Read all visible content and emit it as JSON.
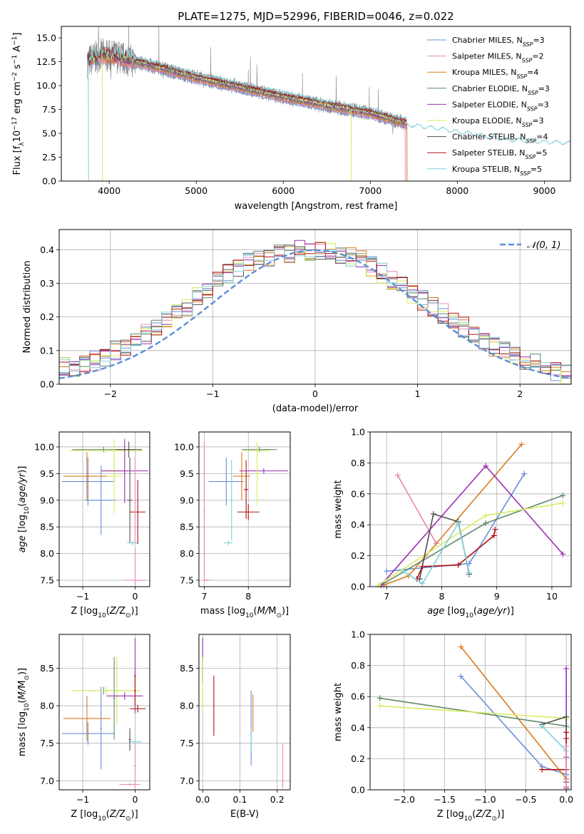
{
  "figure_title": "PLATE=1275, MJD=52996, FIBERID=0046, z=0.022",
  "colors": {
    "Chabrier MILES": "#6a8fd8",
    "Salpeter MILES": "#e888b8",
    "Kroupa MILES": "#d97b20",
    "Chabrier ELODIE": "#5f8a68",
    "Salpeter ELODIE": "#9a30b0",
    "Kroupa ELODIE": "#d8ec60",
    "Chabrier STELIB": "#505050",
    "Salpeter STELIB": "#b01010",
    "Kroupa STELIB": "#80d0d8",
    "data": "#808080",
    "normal": "#5b8ed6"
  },
  "chart_data": [
    {
      "type": "line",
      "panel": "spectrum",
      "title": "PLATE=1275, MJD=52996, FIBERID=0046, z=0.022",
      "xlabel": "wavelength [Angstrom, rest frame]",
      "ylabel": "Flux [f_λ 10^-17 erg cm^-2 s^-1 A^-1]",
      "xlim": [
        3450,
        9300
      ],
      "ylim": [
        0,
        16.2
      ],
      "xticks": [
        "4000",
        "5000",
        "6000",
        "7000",
        "8000",
        "9000"
      ],
      "yticks": [
        "0.0",
        "2.5",
        "5.0",
        "7.5",
        "10.0",
        "12.5",
        "15.0"
      ],
      "legend_position": "upper right",
      "legend": [
        {
          "name": "Chabrier MILES",
          "nssp": "3"
        },
        {
          "name": "Salpeter MILES",
          "nssp": "2"
        },
        {
          "name": "Kroupa MILES",
          "nssp": "4"
        },
        {
          "name": "Chabrier ELODIE",
          "nssp": "3"
        },
        {
          "name": "Salpeter ELODIE",
          "nssp": "3"
        },
        {
          "name": "Kroupa ELODIE",
          "nssp": "3"
        },
        {
          "name": "Chabrier STELIB",
          "nssp": "4"
        },
        {
          "name": "Salpeter STELIB",
          "nssp": "5"
        },
        {
          "name": "Kroupa STELIB",
          "nssp": "5"
        }
      ],
      "continuum_wavelength": [
        3750,
        3900,
        4100,
        4300,
        4600,
        5000,
        5500,
        6000,
        6500,
        7000,
        7420
      ],
      "continuum_flux": [
        12.5,
        13.2,
        13.0,
        12.5,
        11.8,
        10.8,
        9.8,
        8.8,
        7.9,
        7.1,
        6.0
      ]
    },
    {
      "type": "line",
      "panel": "residual-distribution",
      "xlabel": "(data-model)/error",
      "ylabel": "Normed distribution",
      "xlim": [
        -2.5,
        2.5
      ],
      "ylim": [
        0,
        0.46
      ],
      "xticks": [
        "−2",
        "−1",
        "0",
        "1",
        "2"
      ],
      "yticks": [
        "0.0",
        "0.1",
        "0.2",
        "0.3",
        "0.4"
      ],
      "grid": true,
      "legend_position": "upper right",
      "legend": [
        "𝒩(0, 1)"
      ],
      "bin_width": 0.1,
      "bin_centers": [
        -2.45,
        -2.35,
        -2.25,
        -2.15,
        -2.05,
        -1.95,
        -1.85,
        -1.75,
        -1.65,
        -1.55,
        -1.45,
        -1.35,
        -1.25,
        -1.15,
        -1.05,
        -0.95,
        -0.85,
        -0.75,
        -0.65,
        -0.55,
        -0.45,
        -0.35,
        -0.25,
        -0.15,
        -0.05,
        0.05,
        0.15,
        0.25,
        0.35,
        0.45,
        0.55,
        0.65,
        0.75,
        0.85,
        0.95,
        1.05,
        1.15,
        1.25,
        1.35,
        1.45,
        1.55,
        1.65,
        1.75,
        1.85,
        1.95,
        2.05,
        2.15,
        2.25,
        2.35,
        2.45
      ],
      "histogram_base": [
        0.05,
        0.05,
        0.06,
        0.07,
        0.08,
        0.1,
        0.11,
        0.13,
        0.15,
        0.17,
        0.19,
        0.21,
        0.23,
        0.26,
        0.28,
        0.31,
        0.33,
        0.35,
        0.36,
        0.37,
        0.38,
        0.4,
        0.39,
        0.4,
        0.39,
        0.4,
        0.39,
        0.38,
        0.38,
        0.37,
        0.35,
        0.33,
        0.31,
        0.29,
        0.27,
        0.25,
        0.23,
        0.21,
        0.19,
        0.17,
        0.15,
        0.13,
        0.11,
        0.1,
        0.08,
        0.07,
        0.06,
        0.05,
        0.04,
        0.03
      ]
    },
    {
      "type": "scatter",
      "panel": "age-vs-Z",
      "xlabel": "Z [log10(Z/Z⊙)]",
      "ylabel": "age  [log10(age/yr)]",
      "xlim": [
        -1.45,
        0.28
      ],
      "ylim": [
        7.38,
        10.28
      ],
      "xticks": [
        "−1",
        "0"
      ],
      "yticks": [
        "7.5",
        "8.0",
        "8.5",
        "9.0",
        "9.5",
        "10.0"
      ],
      "grid": true,
      "points": [
        {
          "series": "Chabrier MILES",
          "x": -0.9,
          "xerr": 0.5,
          "y": 9.35,
          "yerr": 0.45
        },
        {
          "series": "Chabrier MILES",
          "x": -0.65,
          "xerr": 0.3,
          "y": 9.0,
          "yerr": 0.65
        },
        {
          "series": "Kroupa MILES",
          "x": -0.92,
          "xerr": 0.45,
          "y": 9.45,
          "yerr": 0.45
        },
        {
          "series": "Kroupa MILES",
          "x": -0.4,
          "xerr": 0.25,
          "y": 9.55,
          "yerr": 0.2
        },
        {
          "series": "Chabrier ELODIE",
          "x": -0.6,
          "xerr": 0.6,
          "y": 9.95,
          "yerr": 0.05
        },
        {
          "series": "Kroupa ELODIE",
          "x": -0.55,
          "xerr": 0.7,
          "y": 9.93,
          "yerr": 0.05
        },
        {
          "series": "Kroupa ELODIE",
          "x": -0.4,
          "xerr": 0.15,
          "y": 9.45,
          "yerr": 0.7
        },
        {
          "series": "Salpeter ELODIE",
          "x": -0.2,
          "xerr": 0.45,
          "y": 9.55,
          "yerr": 0.6
        },
        {
          "series": "Chabrier STELIB",
          "x": -0.12,
          "xerr": 0.25,
          "y": 9.95,
          "yerr": 0.15
        },
        {
          "series": "Chabrier STELIB",
          "x": -0.1,
          "xerr": 0.05,
          "y": 9.0,
          "yerr": 0.8
        },
        {
          "series": "Kroupa STELIB",
          "x": -0.05,
          "xerr": 0.1,
          "y": 8.2,
          "yerr": 0.05
        },
        {
          "series": "Salpeter STELIB",
          "x": 0.05,
          "xerr": 0.15,
          "y": 8.78,
          "yerr": 0.6
        },
        {
          "series": "Salpeter MILES",
          "x": 0.0,
          "xerr": 0.2,
          "y": 7.5,
          "yerr": 0.6
        },
        {
          "series": "Salpeter MILES",
          "x": 0.0,
          "xerr": 0.02,
          "y": 9.0,
          "yerr": 0.8
        }
      ]
    },
    {
      "type": "scatter",
      "panel": "age-vs-mass",
      "xlabel": "mass [log10(M/M⊙)]",
      "ylabel": "",
      "xlim": [
        6.88,
        8.95
      ],
      "ylim": [
        7.38,
        10.28
      ],
      "xticks": [
        "7",
        "8"
      ],
      "yticks": [
        "7.5",
        "8.0",
        "8.5",
        "9.0",
        "9.5",
        "10.0"
      ],
      "grid": true,
      "points": [
        {
          "series": "Chabrier MILES",
          "x": 7.5,
          "xerr": 0.4,
          "y": 9.35,
          "yerr": 0.45
        },
        {
          "series": "Kroupa STELIB",
          "x": 7.55,
          "xerr": 0.1,
          "y": 8.2,
          "yerr": 0.05
        },
        {
          "series": "Kroupa STELIB",
          "x": 7.62,
          "xerr": 0.02,
          "y": 9.0,
          "yerr": 0.75
        },
        {
          "series": "Kroupa MILES",
          "x": 7.85,
          "xerr": 0.2,
          "y": 9.45,
          "yerr": 0.45
        },
        {
          "series": "Salpeter STELIB",
          "x": 8.0,
          "xerr": 0.25,
          "y": 8.78,
          "yerr": 0.15
        },
        {
          "series": "Salpeter STELIB",
          "x": 7.95,
          "xerr": 0.05,
          "y": 9.2,
          "yerr": 0.55
        },
        {
          "series": "Salpeter ELODIE",
          "x": 8.35,
          "xerr": 0.55,
          "y": 9.55,
          "yerr": 0.05
        },
        {
          "series": "Chabrier ELODIE",
          "x": 8.25,
          "xerr": 0.4,
          "y": 9.95,
          "yerr": 0.05
        },
        {
          "series": "Kroupa ELODIE",
          "x": 8.2,
          "xerr": 0.3,
          "y": 9.93,
          "yerr": 0.05
        },
        {
          "series": "Kroupa ELODIE",
          "x": 8.2,
          "xerr": 0.05,
          "y": 9.5,
          "yerr": 0.6
        },
        {
          "series": "Salpeter MILES",
          "x": 7.05,
          "xerr": 0.1,
          "y": 7.5,
          "yerr": 0.02
        },
        {
          "series": "Salpeter MILES",
          "x": 7.0,
          "xerr": 0.02,
          "y": 8.8,
          "yerr": 1.3
        }
      ]
    },
    {
      "type": "line",
      "panel": "mass-weight-vs-age",
      "xlabel": "age  [log10(age/yr)]",
      "ylabel": "mass weight",
      "xlim": [
        6.7,
        10.35
      ],
      "ylim": [
        0,
        1
      ],
      "xticks": [
        "7",
        "8",
        "9",
        "10"
      ],
      "yticks": [
        "0.0",
        "0.2",
        "0.4",
        "0.6",
        "0.8",
        "1.0"
      ],
      "grid": true,
      "series": [
        {
          "name": "Chabrier MILES",
          "x": [
            7.0,
            8.5,
            9.5
          ],
          "y": [
            0.1,
            0.15,
            0.73
          ]
        },
        {
          "name": "Salpeter MILES",
          "x": [
            7.2,
            7.9
          ],
          "y": [
            0.72,
            0.28
          ]
        },
        {
          "name": "Kroupa MILES",
          "x": [
            6.95,
            7.4,
            9.45
          ],
          "y": [
            0.01,
            0.07,
            0.92
          ]
        },
        {
          "name": "Chabrier ELODIE",
          "x": [
            6.9,
            8.8,
            10.2
          ],
          "y": [
            0.01,
            0.41,
            0.59
          ]
        },
        {
          "name": "Salpeter ELODIE",
          "x": [
            6.9,
            8.8,
            10.2
          ],
          "y": [
            0.01,
            0.78,
            0.21
          ]
        },
        {
          "name": "Kroupa ELODIE",
          "x": [
            6.85,
            8.8,
            10.2
          ],
          "y": [
            0.01,
            0.46,
            0.54
          ]
        },
        {
          "name": "Chabrier STELIB",
          "x": [
            7.6,
            7.85,
            8.3,
            8.5
          ],
          "y": [
            0.05,
            0.47,
            0.42,
            0.08
          ]
        },
        {
          "name": "Salpeter STELIB",
          "x": [
            7.55,
            7.65,
            8.3,
            8.95,
            8.97
          ],
          "y": [
            0.05,
            0.13,
            0.14,
            0.33,
            0.37
          ]
        },
        {
          "name": "Kroupa STELIB",
          "x": [
            7.3,
            7.65,
            8.3,
            8.5
          ],
          "y": [
            0.1,
            0.02,
            0.41,
            0.09
          ]
        }
      ]
    },
    {
      "type": "scatter",
      "panel": "mass-vs-Z",
      "xlabel": "Z [log10(Z/Z⊙)]",
      "ylabel": "mass [log10(M/M⊙)]",
      "xlim": [
        -1.45,
        0.28
      ],
      "ylim": [
        6.88,
        8.95
      ],
      "xticks": [
        "−1",
        "0"
      ],
      "yticks": [
        "7.0",
        "7.5",
        "8.0",
        "8.5"
      ],
      "grid": true,
      "points": [
        {
          "series": "Chabrier MILES",
          "x": -0.9,
          "xerr": 0.5,
          "y": 7.63,
          "yerr": 0.15
        },
        {
          "series": "Chabrier MILES",
          "x": -0.65,
          "xerr": 0.02,
          "y": 7.7,
          "yerr": 0.55
        },
        {
          "series": "Kroupa MILES",
          "x": -0.92,
          "xerr": 0.45,
          "y": 7.83,
          "yerr": 0.3
        },
        {
          "series": "Chabrier ELODIE",
          "x": -0.6,
          "xerr": 0.55,
          "y": 8.2,
          "yerr": 0.05
        },
        {
          "series": "Kroupa ELODIE",
          "x": -0.55,
          "xerr": 0.65,
          "y": 8.2,
          "yerr": 0.05
        },
        {
          "series": "Kroupa ELODIE",
          "x": -0.35,
          "xerr": 0.02,
          "y": 8.2,
          "yerr": 0.45
        },
        {
          "series": "Chabrier ELODIE",
          "x": -0.4,
          "xerr": 0.02,
          "y": 8.1,
          "yerr": 0.55
        },
        {
          "series": "Salpeter ELODIE",
          "x": -0.2,
          "xerr": 0.35,
          "y": 8.13,
          "yerr": 0.05
        },
        {
          "series": "Salpeter ELODIE",
          "x": 0.0,
          "xerr": 0.02,
          "y": 8.4,
          "yerr": 0.5
        },
        {
          "series": "Kroupa STELIB",
          "x": 0.0,
          "xerr": 0.12,
          "y": 7.52,
          "yerr": 0.02
        },
        {
          "series": "Chabrier STELIB",
          "x": -0.1,
          "xerr": 0.02,
          "y": 7.55,
          "yerr": 0.15
        },
        {
          "series": "Salpeter STELIB",
          "x": 0.05,
          "xerr": 0.15,
          "y": 7.96,
          "yerr": 0.05
        },
        {
          "series": "Salpeter STELIB",
          "x": 0.0,
          "xerr": 0.02,
          "y": 8.2,
          "yerr": 0.2
        },
        {
          "series": "Salpeter MILES",
          "x": -0.1,
          "xerr": 0.2,
          "y": 6.95,
          "yerr": 0.02
        },
        {
          "series": "Salpeter MILES",
          "x": 0.0,
          "xerr": 0.02,
          "y": 7.2,
          "yerr": 0.3
        }
      ]
    },
    {
      "type": "scatter",
      "panel": "mass-vs-EBV",
      "xlabel": "E(B-V)",
      "ylabel": "",
      "xlim": [
        -0.01,
        0.235
      ],
      "ylim": [
        6.88,
        8.95
      ],
      "xticks": [
        "0.0",
        "0.1",
        "0.2"
      ],
      "yticks": [
        "7.0",
        "7.5",
        "8.0",
        "8.5"
      ],
      "grid": true,
      "points": [
        {
          "series": "Salpeter ELODIE",
          "x": 0.0,
          "xerr": 0.001,
          "y": 8.6,
          "yerr": 0.3
        },
        {
          "series": "Kroupa ELODIE",
          "x": 0.0,
          "xerr": 0.001,
          "y": 8.3,
          "yerr": 0.35
        },
        {
          "series": "Salpeter STELIB",
          "x": 0.03,
          "xerr": 0.001,
          "y": 8.0,
          "yerr": 0.4
        },
        {
          "series": "Chabrier MILES",
          "x": 0.13,
          "xerr": 0.001,
          "y": 7.7,
          "yerr": 0.5
        },
        {
          "series": "Kroupa STELIB",
          "x": 0.13,
          "xerr": 0.001,
          "y": 7.55,
          "yerr": 0.15
        },
        {
          "series": "Kroupa MILES",
          "x": 0.135,
          "xerr": 0.001,
          "y": 7.9,
          "yerr": 0.25
        },
        {
          "series": "Salpeter MILES",
          "x": 0.215,
          "xerr": 0.001,
          "y": 7.2,
          "yerr": 0.3
        }
      ]
    },
    {
      "type": "line",
      "panel": "mass-weight-vs-Z",
      "xlabel": "Z [log10(Z/Z⊙)]",
      "ylabel": "mass weight",
      "xlim": [
        -2.42,
        0.06
      ],
      "ylim": [
        0,
        1
      ],
      "xticks": [
        "−2.0",
        "−1.5",
        "−1.0",
        "−0.5",
        "0.0"
      ],
      "yticks": [
        "0.0",
        "0.2",
        "0.4",
        "0.6",
        "0.8",
        "1.0"
      ],
      "grid": true,
      "series": [
        {
          "name": "Chabrier MILES",
          "x": [
            -1.3,
            -0.3,
            0.0
          ],
          "y": [
            0.73,
            0.15,
            0.1
          ]
        },
        {
          "name": "Kroupa MILES",
          "x": [
            -1.3,
            0.0,
            0.0
          ],
          "y": [
            0.92,
            0.07,
            0.01
          ]
        },
        {
          "name": "Chabrier ELODIE",
          "x": [
            -2.3,
            0.0,
            0.0
          ],
          "y": [
            0.59,
            0.41,
            0.01
          ]
        },
        {
          "name": "Kroupa ELODIE",
          "x": [
            -2.3,
            0.0,
            0.0
          ],
          "y": [
            0.54,
            0.46,
            0.01
          ]
        },
        {
          "name": "Salpeter ELODIE",
          "x": [
            0.0,
            0.0,
            0.0
          ],
          "y": [
            0.78,
            0.21,
            0.01
          ]
        },
        {
          "name": "Chabrier STELIB",
          "x": [
            -0.3,
            0.0,
            0.0
          ],
          "y": [
            0.42,
            0.47,
            0.05
          ]
        },
        {
          "name": "Salpeter STELIB",
          "x": [
            -0.3,
            0.0,
            0.0,
            0.0
          ],
          "y": [
            0.13,
            0.13,
            0.33,
            0.37
          ]
        },
        {
          "name": "Kroupa STELIB",
          "x": [
            -0.3,
            0.0,
            0.0
          ],
          "y": [
            0.41,
            0.25,
            0.09
          ]
        },
        {
          "name": "Salpeter MILES",
          "x": [
            0.0,
            0.0
          ],
          "y": [
            0.28,
            0.02
          ]
        }
      ]
    }
  ]
}
